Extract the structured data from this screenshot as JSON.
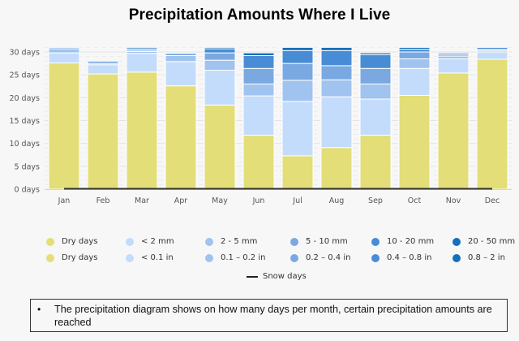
{
  "chart_data": {
    "type": "bar",
    "stacked": true,
    "title": "Precipitation Amounts Where I Live",
    "xlabel": "",
    "ylabel": "",
    "ylim": [
      0,
      30
    ],
    "yticks": [
      0,
      5,
      10,
      15,
      20,
      25,
      30
    ],
    "ytick_labels": [
      "0 days",
      "5 days",
      "10 days",
      "15 days",
      "20 days",
      "25 days",
      "30 days"
    ],
    "grid": true,
    "categories": [
      "Jan",
      "Feb",
      "Mar",
      "Apr",
      "May",
      "Jun",
      "Jul",
      "Aug",
      "Sep",
      "Oct",
      "Nov",
      "Dec"
    ],
    "series": [
      {
        "name": "Dry days",
        "color": "#e3de77",
        "values": [
          27.6,
          25.2,
          25.6,
          22.6,
          18.4,
          11.8,
          7.3,
          9.1,
          11.8,
          20.5,
          25.4,
          28.4
        ]
      },
      {
        "name": "< 2 mm",
        "color": "#c4dcfb",
        "values": [
          2.2,
          2.0,
          4.1,
          5.3,
          7.6,
          8.6,
          11.9,
          11.1,
          7.9,
          5.9,
          3.1,
          1.6
        ]
      },
      {
        "name": "2 - 5 mm",
        "color": "#a0c3ef",
        "values": [
          0.9,
          0.3,
          0.4,
          1.3,
          2.2,
          2.6,
          4.6,
          3.7,
          3.3,
          2.1,
          0.6,
          0.3
        ]
      },
      {
        "name": "5 - 10 mm",
        "color": "#7aa9e2",
        "values": [
          0.3,
          0.5,
          0.3,
          0.5,
          1.6,
          3.4,
          3.7,
          3.1,
          3.4,
          1.5,
          0.4,
          0.3
        ]
      },
      {
        "name": "10 - 20 mm",
        "color": "#488cd5",
        "values": [
          0,
          0,
          0.3,
          0,
          0.9,
          2.8,
          2.8,
          3.3,
          3.0,
          0.6,
          0.3,
          0.4
        ]
      },
      {
        "name": "20 - 50 mm",
        "color": "#1570bc",
        "values": [
          0,
          0,
          0.3,
          0,
          0.3,
          0.6,
          0.7,
          0.7,
          0.4,
          0.4,
          0,
          0
        ]
      }
    ],
    "line_series": [
      {
        "name": "Snow days",
        "color": "#333333",
        "values": [
          0,
          0,
          0,
          0,
          0,
          0,
          0,
          0,
          0,
          0,
          0,
          0
        ]
      }
    ],
    "legend": {
      "placement": "bottom",
      "rows": [
        [
          "Dry days",
          "< 2 mm",
          "2 - 5 mm",
          "5 - 10 mm",
          "10 - 20 mm",
          "20 - 50 mm"
        ],
        [
          "Dry days",
          "< 0.1 in",
          "0.1 – 0.2 in",
          "0.2 – 0.4 in",
          "0.4 – 0.8 in",
          "0.8 – 2 in"
        ]
      ],
      "line_label": "Snow days"
    }
  },
  "note": {
    "bullet": "•",
    "text": "The precipitation diagram shows on how many days per month, certain precipitation amounts are reached"
  }
}
